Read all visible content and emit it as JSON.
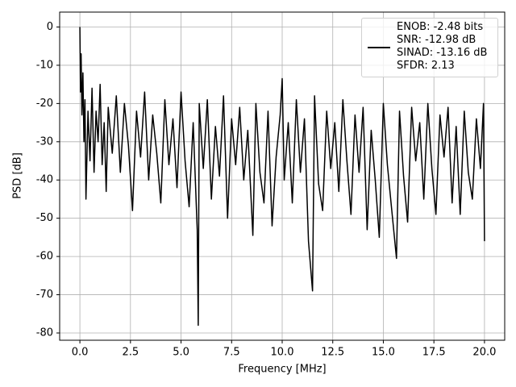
{
  "chart_data": {
    "type": "line",
    "xlabel": "Frequency [MHz]",
    "ylabel": "PSD [dB]",
    "xlim": [
      -1,
      21
    ],
    "ylim": [
      -81.9,
      3.9
    ],
    "xticks": [
      {
        "value": 0,
        "label": "0.0"
      },
      {
        "value": 2.5,
        "label": "2.5"
      },
      {
        "value": 5,
        "label": "5.0"
      },
      {
        "value": 7.5,
        "label": "7.5"
      },
      {
        "value": 10,
        "label": "10.0"
      },
      {
        "value": 12.5,
        "label": "12.5"
      },
      {
        "value": 15,
        "label": "15.0"
      },
      {
        "value": 17.5,
        "label": "17.5"
      },
      {
        "value": 20,
        "label": "20.0"
      }
    ],
    "yticks": [
      0,
      -10,
      -20,
      -30,
      -40,
      -50,
      -60,
      -70,
      -80
    ],
    "grid": true,
    "legend": "upper right",
    "x": [
      0,
      0.03,
      0.06,
      0.1,
      0.15,
      0.2,
      0.25,
      0.3,
      0.4,
      0.5,
      0.6,
      0.7,
      0.8,
      0.9,
      1.0,
      1.1,
      1.2,
      1.3,
      1.4,
      1.6,
      1.8,
      2.0,
      2.2,
      2.4,
      2.6,
      2.8,
      3.0,
      3.2,
      3.4,
      3.6,
      3.8,
      4.0,
      4.2,
      4.4,
      4.6,
      4.8,
      5.0,
      5.2,
      5.4,
      5.6,
      5.8,
      5.85,
      5.9,
      6.1,
      6.3,
      6.5,
      6.7,
      6.9,
      7.1,
      7.3,
      7.5,
      7.7,
      7.9,
      8.1,
      8.3,
      8.55,
      8.7,
      8.9,
      9.1,
      9.3,
      9.5,
      9.7,
      9.9,
      10.0,
      10.1,
      10.3,
      10.5,
      10.7,
      10.9,
      11.1,
      11.3,
      11.5,
      11.6,
      11.8,
      12.0,
      12.2,
      12.4,
      12.6,
      12.8,
      13.0,
      13.2,
      13.4,
      13.6,
      13.8,
      14.0,
      14.2,
      14.4,
      14.6,
      14.8,
      15.0,
      15.2,
      15.4,
      15.65,
      15.8,
      16.0,
      16.2,
      16.4,
      16.6,
      16.8,
      17.0,
      17.2,
      17.4,
      17.6,
      17.8,
      18.0,
      18.2,
      18.4,
      18.6,
      18.8,
      19.0,
      19.2,
      19.4,
      19.6,
      19.8,
      19.95,
      20.0
    ],
    "series": [
      {
        "name": "ENOB: -2.48 bits\nSNR: -12.98 dB\nSINAD: -13.16 dB\nSFDR: 2.13",
        "color": "#000000",
        "values": [
          0,
          -17,
          -7,
          -23,
          -12,
          -30,
          -19,
          -45,
          -22,
          -35,
          -16,
          -38,
          -22,
          -30,
          -15,
          -36,
          -25,
          -43,
          -21,
          -33,
          -18,
          -38,
          -20,
          -31,
          -48,
          -22,
          -34,
          -17,
          -40,
          -23,
          -33,
          -46,
          -19,
          -36,
          -24,
          -42,
          -17,
          -35,
          -47,
          -25,
          -53,
          -78,
          -20,
          -37,
          -19,
          -45,
          -26,
          -39,
          -18,
          -50,
          -24,
          -36,
          -21,
          -40,
          -27,
          -54.5,
          -20,
          -38,
          -46,
          -22,
          -52,
          -34,
          -23,
          -13.5,
          -40,
          -25,
          -46,
          -19,
          -38,
          -24,
          -56,
          -69,
          -18,
          -41,
          -48,
          -22,
          -37,
          -25,
          -43,
          -19,
          -35,
          -49,
          -23,
          -38,
          -21,
          -53,
          -27,
          -40,
          -55,
          -20,
          -36,
          -47,
          -60.5,
          -22,
          -39,
          -51,
          -21,
          -35,
          -25,
          -45,
          -20,
          -37,
          -49,
          -23,
          -34,
          -21,
          -46,
          -26,
          -49,
          -22,
          -38,
          -45,
          -24,
          -37,
          -20,
          -56
        ]
      }
    ]
  }
}
